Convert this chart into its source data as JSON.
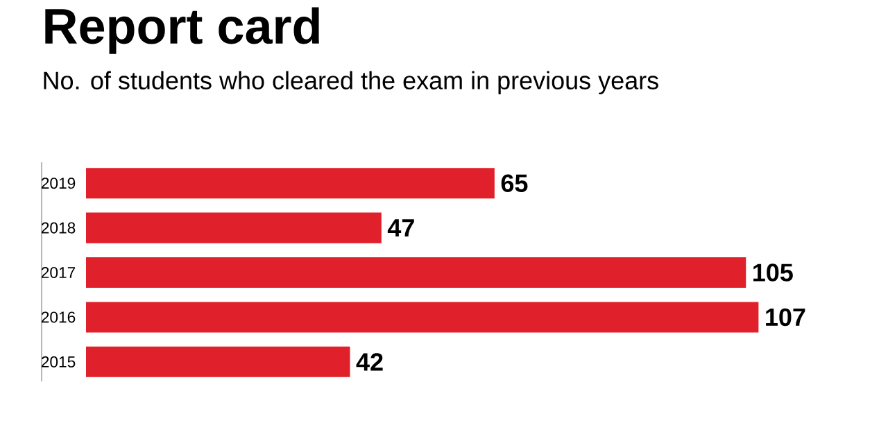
{
  "chart_data": {
    "type": "bar",
    "orientation": "horizontal",
    "title": "Report card",
    "subtitle": "No. of students who cleared the exam in previous years",
    "categories": [
      "2019",
      "2018",
      "2017",
      "2016",
      "2015"
    ],
    "values": [
      65,
      47,
      105,
      107,
      42
    ],
    "color": "#e0202a",
    "data_labels": true,
    "tick_labels": "y"
  }
}
